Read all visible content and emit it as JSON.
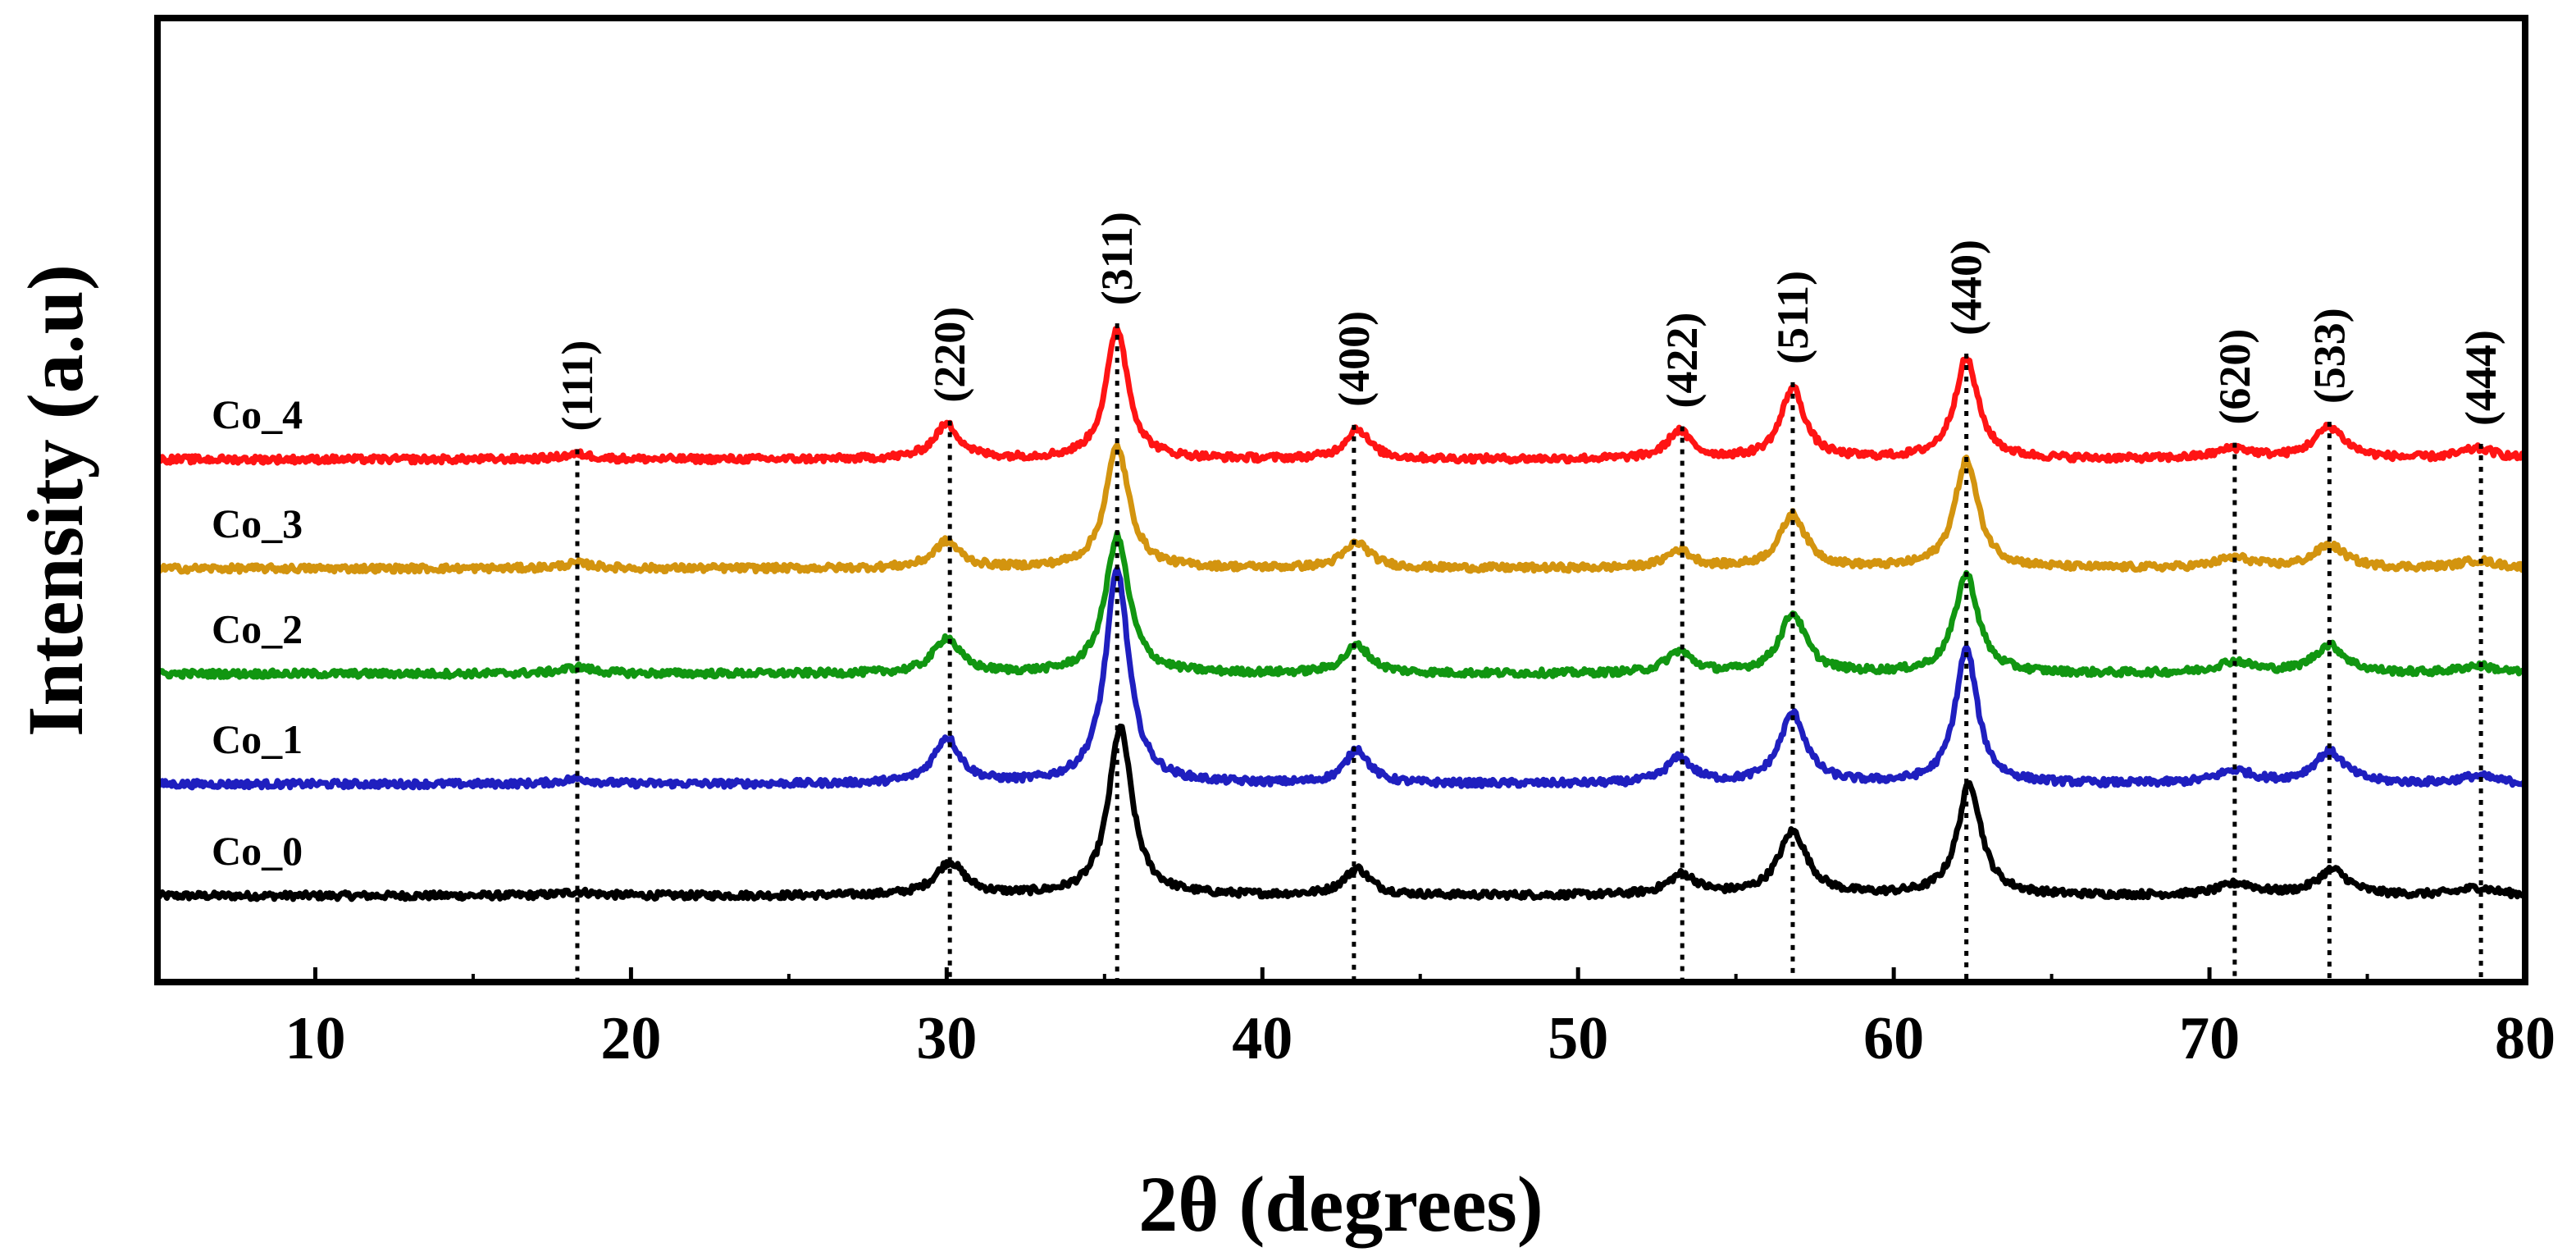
{
  "chart_data": {
    "type": "line",
    "title": "",
    "xlabel": "2θ (degrees)",
    "ylabel": "Intensity (a.u)",
    "xlim": [
      5,
      80
    ],
    "xticks": [
      10,
      20,
      30,
      40,
      50,
      60,
      70,
      80
    ],
    "grid": false,
    "legend": "inline labels at left",
    "series": [
      {
        "name": "Co_0",
        "color": "#000000",
        "baseline": 0.8,
        "peaks": [
          [
            18.3,
            0.3,
            0.6
          ],
          [
            30.1,
            2.6,
            0.55
          ],
          [
            35.5,
            13.2,
            0.45
          ],
          [
            43.0,
            2.1,
            0.5
          ],
          [
            53.3,
            1.6,
            0.55
          ],
          [
            56.8,
            5.0,
            0.55
          ],
          [
            62.4,
            8.8,
            0.45
          ],
          [
            70.9,
            0.9,
            0.7
          ],
          [
            73.9,
            2.0,
            0.6
          ],
          [
            78.5,
            0.6,
            0.7
          ]
        ]
      },
      {
        "name": "Co_1",
        "color": "#1f1fbf",
        "baseline": 9.6,
        "peaks": [
          [
            18.3,
            0.4,
            0.6
          ],
          [
            30.0,
            3.6,
            0.5
          ],
          [
            35.4,
            16.8,
            0.45
          ],
          [
            43.0,
            2.7,
            0.45
          ],
          [
            53.2,
            2.0,
            0.5
          ],
          [
            56.8,
            5.5,
            0.5
          ],
          [
            62.3,
            10.6,
            0.42
          ],
          [
            70.8,
            1.0,
            0.7
          ],
          [
            73.8,
            2.5,
            0.6
          ],
          [
            78.5,
            0.6,
            0.7
          ]
        ]
      },
      {
        "name": "Co_2",
        "color": "#119611",
        "baseline": 18.3,
        "peaks": [
          [
            18.3,
            0.5,
            0.6
          ],
          [
            30.0,
            2.8,
            0.5
          ],
          [
            35.4,
            10.8,
            0.45
          ],
          [
            43.0,
            2.2,
            0.5
          ],
          [
            53.2,
            1.7,
            0.5
          ],
          [
            56.8,
            4.7,
            0.5
          ],
          [
            62.3,
            7.8,
            0.45
          ],
          [
            70.8,
            0.9,
            0.7
          ],
          [
            73.8,
            2.2,
            0.6
          ],
          [
            78.5,
            0.6,
            0.7
          ]
        ]
      },
      {
        "name": "Co_3",
        "color": "#d3940f",
        "baseline": 26.6,
        "peaks": [
          [
            18.3,
            0.4,
            0.6
          ],
          [
            30.0,
            2.1,
            0.5
          ],
          [
            35.4,
            9.6,
            0.45
          ],
          [
            43.0,
            2.0,
            0.5
          ],
          [
            53.2,
            1.4,
            0.5
          ],
          [
            56.8,
            4.2,
            0.5
          ],
          [
            62.3,
            8.5,
            0.45
          ],
          [
            70.8,
            0.8,
            0.7
          ],
          [
            73.8,
            1.8,
            0.6
          ],
          [
            78.5,
            0.6,
            0.7
          ]
        ]
      },
      {
        "name": "Co_4",
        "color": "#ff1414",
        "baseline": 35.2,
        "peaks": [
          [
            18.3,
            0.4,
            0.6
          ],
          [
            30.0,
            2.7,
            0.5
          ],
          [
            35.4,
            10.3,
            0.42
          ],
          [
            43.0,
            2.4,
            0.45
          ],
          [
            53.2,
            2.2,
            0.45
          ],
          [
            56.8,
            5.6,
            0.45
          ],
          [
            62.3,
            7.9,
            0.45
          ],
          [
            70.8,
            0.8,
            0.7
          ],
          [
            73.8,
            2.5,
            0.6
          ],
          [
            78.5,
            0.8,
            0.7
          ]
        ]
      }
    ],
    "reflections": [
      {
        "label": "(111)",
        "x": 18.3
      },
      {
        "label": "(220)",
        "x": 30.1
      },
      {
        "label": "(311)",
        "x": 35.4
      },
      {
        "label": "(400)",
        "x": 42.9
      },
      {
        "label": "(422)",
        "x": 53.3
      },
      {
        "label": "(511)",
        "x": 56.8
      },
      {
        "label": "(440)",
        "x": 62.3
      },
      {
        "label": "(620)",
        "x": 70.8
      },
      {
        "label": "(533)",
        "x": 73.8
      },
      {
        "label": "(444)",
        "x": 78.6
      }
    ]
  }
}
